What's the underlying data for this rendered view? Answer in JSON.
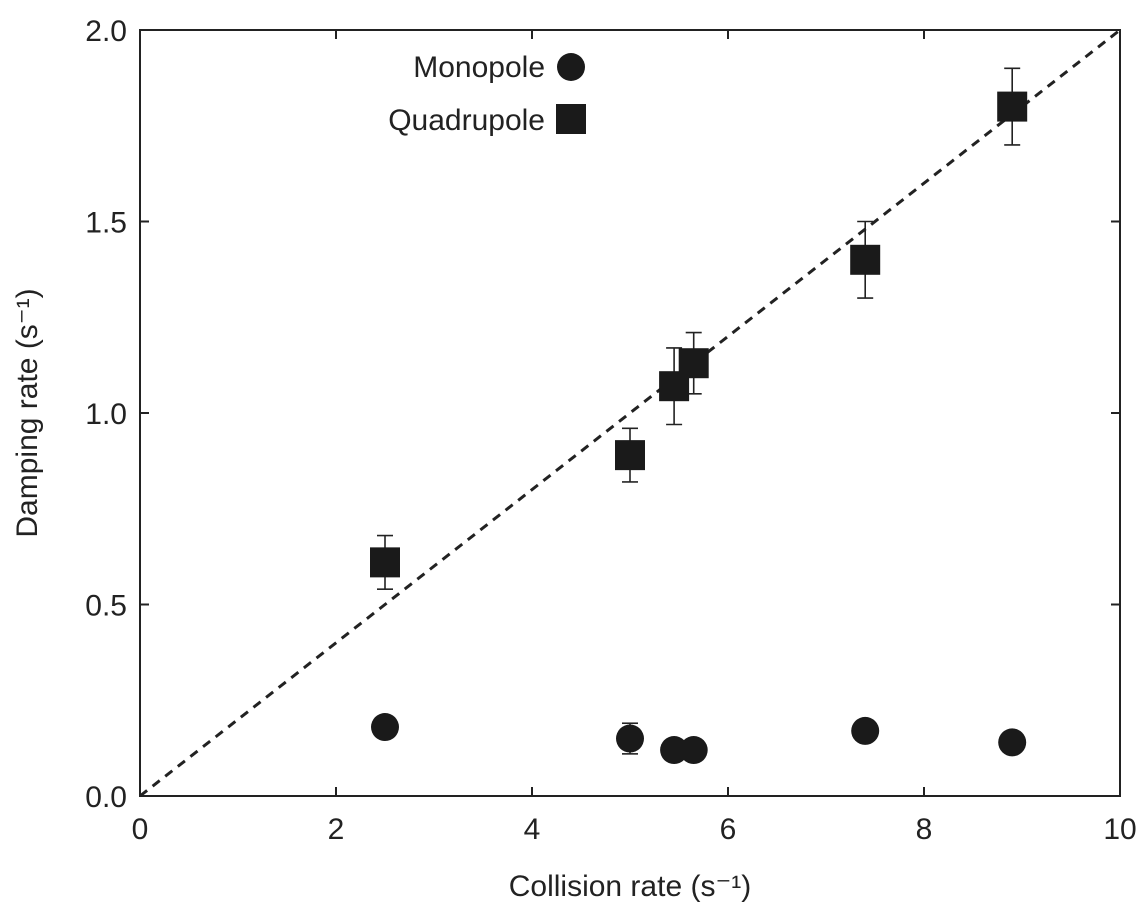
{
  "chart_data": {
    "type": "scatter",
    "xlabel": "Collision rate (s⁻¹)",
    "ylabel": "Damping rate (s⁻¹)",
    "xlim": [
      0,
      10
    ],
    "ylim": [
      0,
      2.0
    ],
    "xticks": [
      "0",
      "2",
      "4",
      "6",
      "8",
      "10"
    ],
    "yticks": [
      "0.0",
      "0.5",
      "1.0",
      "1.5",
      "2.0"
    ],
    "grid": false,
    "legend_position": "top-left",
    "reference_line": {
      "style": "dashed",
      "x": [
        0,
        10
      ],
      "y": [
        0,
        2.0
      ]
    },
    "series": [
      {
        "name": "Monopole",
        "marker": "circle",
        "x": [
          2.5,
          5.0,
          5.45,
          5.65,
          7.4,
          8.9
        ],
        "y": [
          0.18,
          0.15,
          0.12,
          0.12,
          0.17,
          0.14
        ],
        "yerr": [
          0,
          0.04,
          0,
          0,
          0,
          0
        ]
      },
      {
        "name": "Quadrupole",
        "marker": "square",
        "x": [
          2.5,
          5.0,
          5.45,
          5.65,
          7.4,
          8.9
        ],
        "y": [
          0.61,
          0.89,
          1.07,
          1.13,
          1.4,
          1.8
        ],
        "yerr": [
          0.07,
          0.07,
          0.1,
          0.08,
          0.1,
          0.1
        ]
      }
    ]
  },
  "colors": {
    "marker": "#1a1a1a",
    "axis": "#222222",
    "text": "#222222"
  }
}
